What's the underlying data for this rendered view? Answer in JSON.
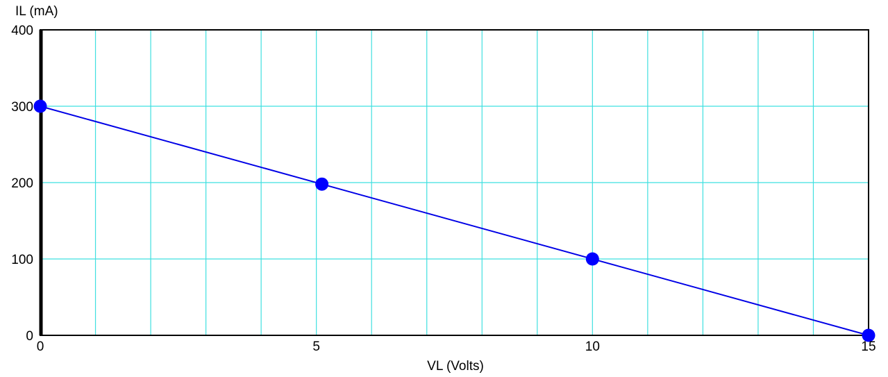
{
  "chart_data": {
    "type": "line",
    "title": "",
    "xlabel": "VL (Volts)",
    "ylabel": "IL (mA)",
    "xlim": [
      0,
      15
    ],
    "ylim": [
      0,
      400
    ],
    "x_ticks": [
      "0",
      "5",
      "10",
      "15"
    ],
    "y_ticks": [
      "0",
      "100",
      "200",
      "300",
      "400"
    ],
    "x_grid_step": 1,
    "y_grid_step": 100,
    "grid": true,
    "legend": "none",
    "series": [
      {
        "x": [
          0,
          15
        ],
        "y": [
          300,
          0
        ],
        "kind": "line"
      },
      {
        "x": [
          0,
          5.1,
          10,
          15
        ],
        "y": [
          300,
          198,
          100,
          0
        ],
        "kind": "markers"
      }
    ],
    "colors": {
      "line": "#0000e6",
      "marker": "#0000ff",
      "grid": "#3fe0e0",
      "frame": "#000000"
    }
  }
}
